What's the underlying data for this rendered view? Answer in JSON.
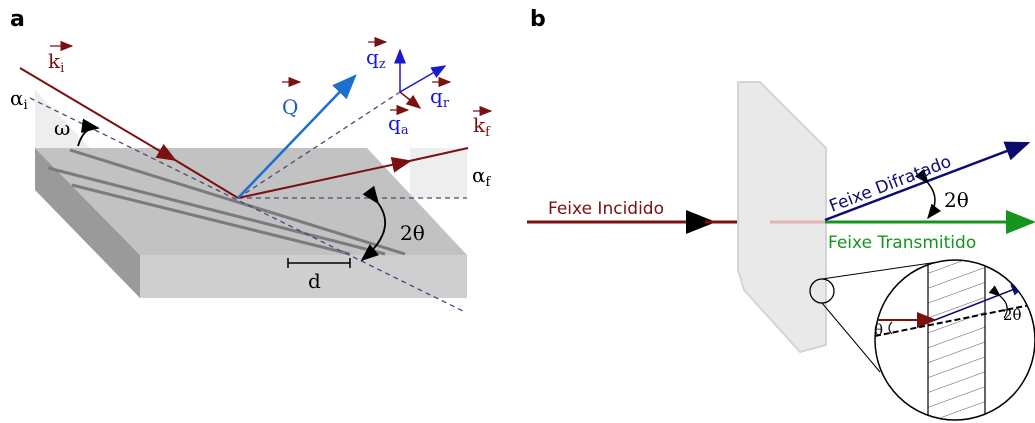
{
  "panel_a": {
    "label": "a",
    "k_i": {
      "base": "k",
      "sub": "i"
    },
    "alpha_i": {
      "base": "α",
      "sub": "i"
    },
    "omega": "ω",
    "Q": "Q",
    "q_z": {
      "base": "q",
      "sub": "z"
    },
    "q_r": {
      "base": "q",
      "sub": "r"
    },
    "q_a": {
      "base": "q",
      "sub": "a"
    },
    "k_f": {
      "base": "k",
      "sub": "f"
    },
    "alpha_f": {
      "base": "α",
      "sub": "f"
    },
    "two_theta": "2θ",
    "d": "d"
  },
  "panel_b": {
    "label": "b",
    "incident": "Feixe Incidido",
    "diffracted": "Feixe Difratado",
    "two_theta": "2θ",
    "transmitted": "Feixe Transmitido",
    "inset_two_theta": "2θ",
    "inset_theta": "θ"
  }
}
